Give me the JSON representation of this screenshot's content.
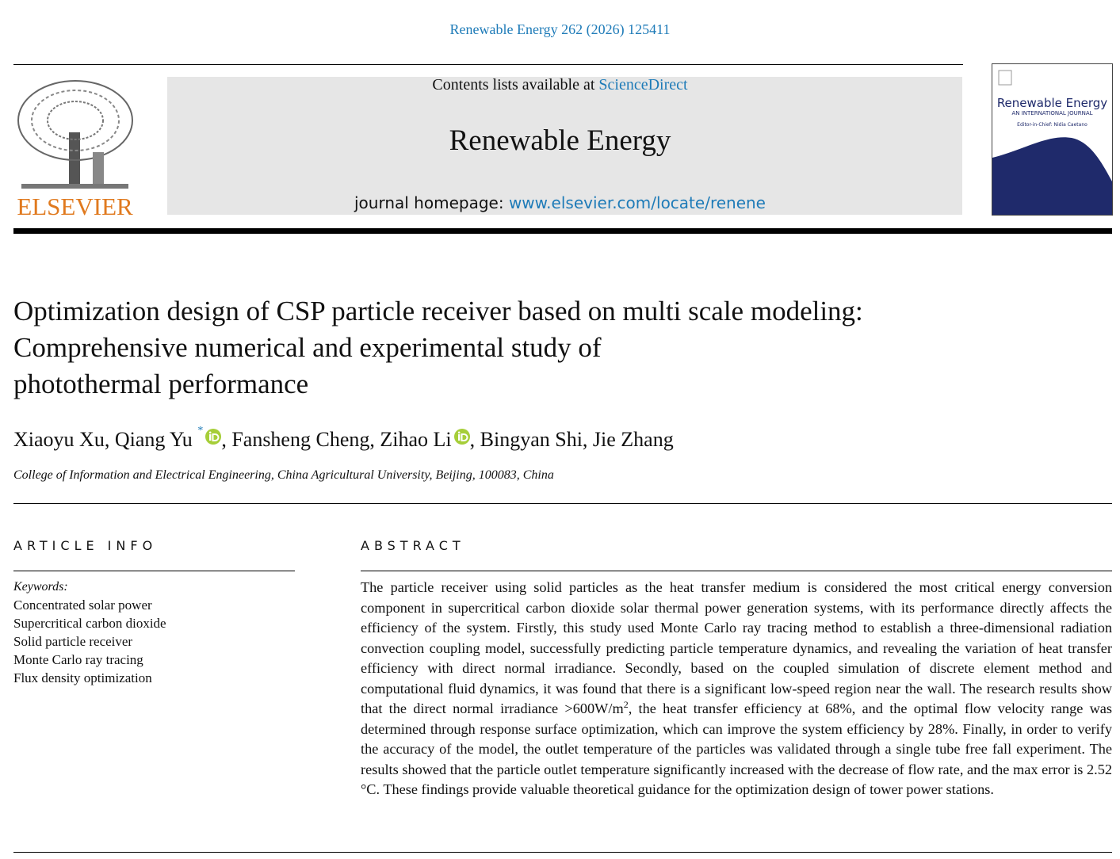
{
  "journal_ref": "Renewable Energy 262 (2026) 125411",
  "header": {
    "contents_prefix": "Contents lists available at",
    "contents_link": "ScienceDirect",
    "journal_title": "Renewable Energy",
    "homepage_prefix": "journal homepage:",
    "homepage_link": "www.elsevier.com/locate/renene",
    "publisher": "ELSEVIER",
    "cover": {
      "title": "Renewable Energy",
      "subtitle": "AN INTERNATIONAL JOURNAL",
      "editor": "Editor-in-Chief: Nidia Caetano"
    }
  },
  "article": {
    "title_lines": [
      "Optimization design of CSP particle receiver based on multi scale modeling:",
      "Comprehensive numerical and experimental study of",
      "photothermal performance"
    ],
    "authors": [
      {
        "name": "Xiaoyu Xu"
      },
      {
        "name": "Qiang Yu",
        "marker": "*",
        "orcid": true
      },
      {
        "name": "Fansheng Cheng"
      },
      {
        "name": "Zihao Li",
        "orcid": true
      },
      {
        "name": "Bingyan Shi"
      },
      {
        "name": "Jie Zhang"
      }
    ],
    "author_separator": ",",
    "affiliation": "College of Information and Electrical Engineering, China Agricultural University, Beijing, 100083, China"
  },
  "article_info": {
    "heading": "ARTICLE INFO",
    "keywords_label": "Keywords:",
    "keywords": [
      "Concentrated solar power",
      "Supercritical carbon dioxide",
      "Solid particle receiver",
      "Monte Carlo ray tracing",
      "Flux density optimization"
    ]
  },
  "abstract": {
    "heading": "ABSTRACT",
    "parts": [
      "The particle receiver using solid particles as the heat transfer medium is considered the most critical energy conversion component in supercritical carbon dioxide solar thermal power generation systems, with its performance directly affects the efficiency of the system. Firstly, this study used Monte Carlo ray tracing method to establish a three-dimensional radiation convection coupling model, successfully predicting particle temperature dynamics, and revealing the variation of heat transfer efficiency with direct normal irradiance. Secondly, based on the coupled simulation of discrete element method and computational fluid dynamics, it was found that there is a significant low-speed region near the wall. The research results show that the direct normal irradiance >600W/m",
      "2",
      ", the heat transfer efficiency at 68%, and the optimal flow velocity range was determined through response surface optimization, which can improve the system efficiency by 28%. Finally, in order to verify the accuracy of the model, the outlet temperature of the particles was validated through a single tube free fall experiment. The results showed that the particle outlet temperature significantly increased with the decrease of flow rate, and the max error is 2.52 °C. These findings provide valuable theoretical guidance for the optimization design of tower power stations."
    ]
  }
}
